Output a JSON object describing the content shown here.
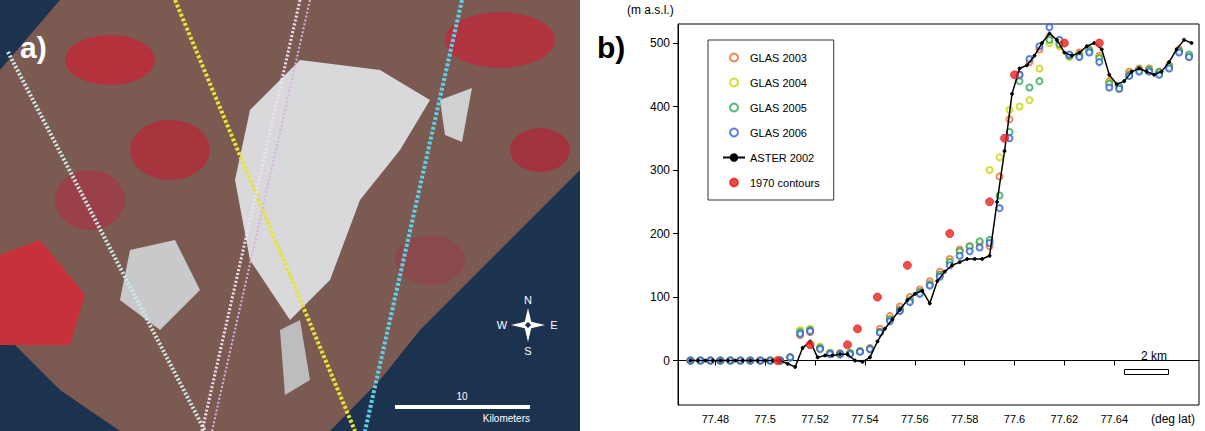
{
  "image_panel": {
    "label": "a)",
    "compass": [
      "N",
      "W",
      "E",
      "S"
    ],
    "scale_bar": {
      "value": 10,
      "unit": "Kilometers"
    }
  },
  "chart_data": {
    "type": "scatter",
    "panel": "b)",
    "xlabel": "(deg lat)",
    "ylabel": "(m a.s.l.)",
    "xlim": [
      77.465,
      77.674
    ],
    "xticks": [
      77.48,
      77.5,
      77.52,
      77.54,
      77.56,
      77.58,
      77.6,
      77.62,
      77.64
    ],
    "ylim": [
      -70,
      530
    ],
    "yticks": [
      0,
      100,
      200,
      300,
      400,
      500
    ],
    "grid": false,
    "legend": "upper left",
    "annotations": [
      {
        "text": "2 km"
      }
    ],
    "series": [
      {
        "name": "GLAS 2003",
        "color": "#ee6a2c",
        "marker": "open_circle",
        "x": [
          77.47,
          77.474,
          77.478,
          77.482,
          77.486,
          77.49,
          77.494,
          77.498,
          77.502,
          77.506,
          77.51,
          77.514,
          77.518,
          77.522,
          77.526,
          77.53,
          77.534,
          77.538,
          77.542,
          77.546,
          77.55,
          77.554,
          77.558,
          77.562,
          77.566,
          77.57,
          77.574,
          77.578,
          77.582,
          77.586,
          77.59,
          77.594,
          77.598,
          77.602,
          77.606,
          77.61,
          77.614,
          77.618,
          77.622,
          77.626,
          77.63,
          77.634,
          77.638,
          77.642,
          77.646,
          77.65,
          77.654,
          77.658,
          77.662,
          77.666,
          77.67
        ],
        "values": [
          0,
          0,
          0,
          0,
          0,
          0,
          0,
          0,
          0,
          0,
          5,
          40,
          45,
          20,
          12,
          12,
          12,
          15,
          20,
          50,
          70,
          85,
          100,
          112,
          125,
          140,
          160,
          175,
          180,
          185,
          180,
          290,
          380,
          450,
          470,
          490,
          510,
          500,
          480,
          485,
          490,
          480,
          440,
          430,
          455,
          460,
          460,
          455,
          465,
          490,
          480
        ]
      },
      {
        "name": "GLAS 2004",
        "color": "#c8d400",
        "marker": "open_circle",
        "x": [
          77.47,
          77.474,
          77.478,
          77.482,
          77.486,
          77.49,
          77.494,
          77.498,
          77.502,
          77.506,
          77.51,
          77.514,
          77.518,
          77.522,
          77.526,
          77.53,
          77.534,
          77.538,
          77.542,
          77.546,
          77.55,
          77.554,
          77.558,
          77.562,
          77.566,
          77.57,
          77.574,
          77.578,
          77.582,
          77.586,
          77.59,
          77.594,
          77.598,
          77.602,
          77.606,
          77.61,
          77.614,
          77.618,
          77.622,
          77.626,
          77.63,
          77.634,
          77.638,
          77.642,
          77.646,
          77.65,
          77.654,
          77.658,
          77.662,
          77.666,
          77.67
        ],
        "values": [
          0,
          0,
          0,
          0,
          0,
          0,
          0,
          0,
          0,
          0,
          5,
          48,
          50,
          22,
          12,
          10,
          12,
          15,
          18,
          45,
          65,
          80,
          95,
          108,
          120,
          135,
          155,
          170,
          178,
          185,
          300,
          320,
          395,
          400,
          410,
          460,
          500,
          495,
          478,
          482,
          488,
          478,
          438,
          428,
          452,
          458,
          458,
          452,
          462,
          488,
          478
        ]
      },
      {
        "name": "GLAS 2005",
        "color": "#2ea65a",
        "marker": "open_circle",
        "x": [
          77.47,
          77.474,
          77.478,
          77.482,
          77.486,
          77.49,
          77.494,
          77.498,
          77.502,
          77.506,
          77.51,
          77.514,
          77.518,
          77.522,
          77.526,
          77.53,
          77.534,
          77.538,
          77.542,
          77.546,
          77.55,
          77.554,
          77.558,
          77.562,
          77.566,
          77.57,
          77.574,
          77.578,
          77.582,
          77.586,
          77.59,
          77.594,
          77.598,
          77.602,
          77.606,
          77.61,
          77.614,
          77.618,
          77.622,
          77.626,
          77.63,
          77.634,
          77.638,
          77.642,
          77.646,
          77.65,
          77.654,
          77.658,
          77.662,
          77.666,
          77.67
        ],
        "values": [
          0,
          0,
          0,
          0,
          0,
          0,
          0,
          0,
          0,
          0,
          5,
          45,
          48,
          20,
          12,
          10,
          12,
          14,
          18,
          45,
          65,
          80,
          95,
          108,
          120,
          135,
          155,
          172,
          180,
          188,
          190,
          260,
          360,
          440,
          430,
          440,
          505,
          498,
          480,
          480,
          488,
          476,
          436,
          432,
          450,
          458,
          458,
          454,
          463,
          488,
          482
        ]
      },
      {
        "name": "GLAS 2006",
        "color": "#2f5fd8",
        "marker": "open_circle",
        "x": [
          77.47,
          77.474,
          77.478,
          77.482,
          77.486,
          77.49,
          77.494,
          77.498,
          77.502,
          77.506,
          77.51,
          77.514,
          77.518,
          77.522,
          77.526,
          77.53,
          77.534,
          77.538,
          77.542,
          77.546,
          77.55,
          77.554,
          77.558,
          77.562,
          77.566,
          77.57,
          77.574,
          77.578,
          77.582,
          77.586,
          77.59,
          77.594,
          77.598,
          77.602,
          77.606,
          77.61,
          77.614,
          77.618,
          77.622,
          77.626,
          77.63,
          77.634,
          77.638,
          77.642,
          77.646,
          77.65,
          77.654,
          77.658,
          77.662,
          77.666,
          77.67
        ],
        "values": [
          0,
          0,
          0,
          0,
          0,
          0,
          0,
          0,
          0,
          0,
          5,
          42,
          46,
          18,
          10,
          10,
          10,
          14,
          18,
          44,
          62,
          78,
          92,
          105,
          118,
          132,
          150,
          165,
          172,
          178,
          185,
          240,
          350,
          450,
          475,
          495,
          525,
          505,
          482,
          478,
          485,
          470,
          430,
          428,
          448,
          455,
          455,
          450,
          460,
          485,
          478
        ]
      },
      {
        "name": "ASTER 2002",
        "color": "#000000",
        "type": "line",
        "marker": "dot",
        "line_style": "solid",
        "x": [
          77.47,
          77.473,
          77.476,
          77.479,
          77.482,
          77.485,
          77.488,
          77.491,
          77.494,
          77.497,
          77.5,
          77.503,
          77.506,
          77.509,
          77.512,
          77.515,
          77.518,
          77.521,
          77.524,
          77.527,
          77.53,
          77.533,
          77.536,
          77.539,
          77.542,
          77.545,
          77.548,
          77.551,
          77.554,
          77.557,
          77.56,
          77.563,
          77.566,
          77.569,
          77.572,
          77.575,
          77.578,
          77.581,
          77.584,
          77.587,
          77.59,
          77.593,
          77.596,
          77.599,
          77.602,
          77.605,
          77.608,
          77.611,
          77.614,
          77.617,
          77.62,
          77.623,
          77.626,
          77.629,
          77.632,
          77.635,
          77.638,
          77.641,
          77.644,
          77.647,
          77.65,
          77.653,
          77.656,
          77.659,
          77.662,
          77.665,
          77.668,
          77.671
        ],
        "values": [
          0,
          0,
          0,
          0,
          0,
          0,
          0,
          0,
          0,
          0,
          0,
          0,
          0,
          -5,
          -10,
          20,
          30,
          5,
          8,
          8,
          10,
          10,
          0,
          -2,
          5,
          30,
          50,
          65,
          80,
          95,
          105,
          110,
          90,
          125,
          140,
          150,
          155,
          160,
          160,
          160,
          165,
          250,
          330,
          420,
          460,
          465,
          480,
          500,
          515,
          505,
          485,
          480,
          485,
          495,
          500,
          490,
          450,
          435,
          440,
          455,
          460,
          455,
          450,
          455,
          470,
          490,
          505,
          500
        ]
      },
      {
        "name": "1970 contours",
        "color": "#e8231f",
        "marker": "filled_circle",
        "x": [
          77.505,
          77.518,
          77.533,
          77.537,
          77.545,
          77.557,
          77.574,
          77.59,
          77.596,
          77.6,
          77.62,
          77.634
        ],
        "values": [
          0,
          25,
          25,
          50,
          100,
          150,
          200,
          250,
          350,
          450,
          500,
          500
        ]
      }
    ]
  }
}
